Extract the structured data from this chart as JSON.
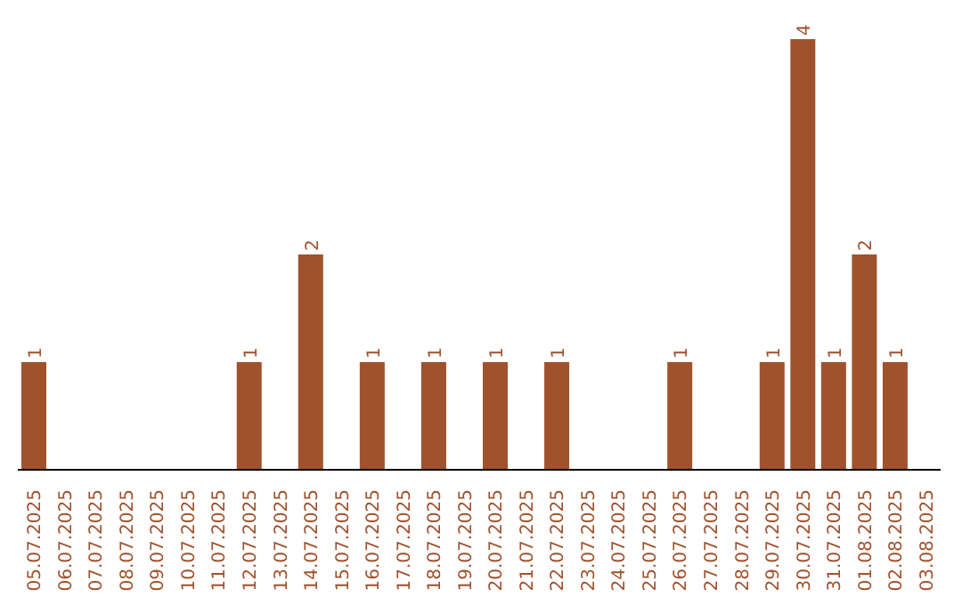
{
  "chart_data": {
    "type": "bar",
    "categories": [
      "05.07.2025",
      "06.07.2025",
      "07.07.2025",
      "08.07.2025",
      "09.07.2025",
      "10.07.2025",
      "11.07.2025",
      "12.07.2025",
      "13.07.2025",
      "14.07.2025",
      "15.07.2025",
      "16.07.2025",
      "17.07.2025",
      "18.07.2025",
      "19.07.2025",
      "20.07.2025",
      "21.07.2025",
      "22.07.2025",
      "23.07.2025",
      "24.07.2025",
      "25.07.2025",
      "26.07.2025",
      "27.07.2025",
      "28.07.2025",
      "29.07.2025",
      "30.07.2025",
      "31.07.2025",
      "01.08.2025",
      "02.08.2025",
      "03.08.2025"
    ],
    "values": [
      1,
      0,
      0,
      0,
      0,
      0,
      0,
      1,
      0,
      2,
      0,
      1,
      0,
      1,
      0,
      1,
      0,
      1,
      0,
      0,
      0,
      1,
      0,
      0,
      1,
      4,
      1,
      2,
      1,
      0
    ],
    "value_labels": [
      "1",
      null,
      null,
      null,
      null,
      null,
      null,
      "1",
      null,
      "2",
      null,
      "1",
      null,
      "1",
      null,
      "1",
      null,
      "1",
      null,
      null,
      null,
      "1",
      null,
      null,
      "1",
      "4",
      "1",
      "2",
      "1",
      null
    ],
    "color": "#a0522d"
  }
}
